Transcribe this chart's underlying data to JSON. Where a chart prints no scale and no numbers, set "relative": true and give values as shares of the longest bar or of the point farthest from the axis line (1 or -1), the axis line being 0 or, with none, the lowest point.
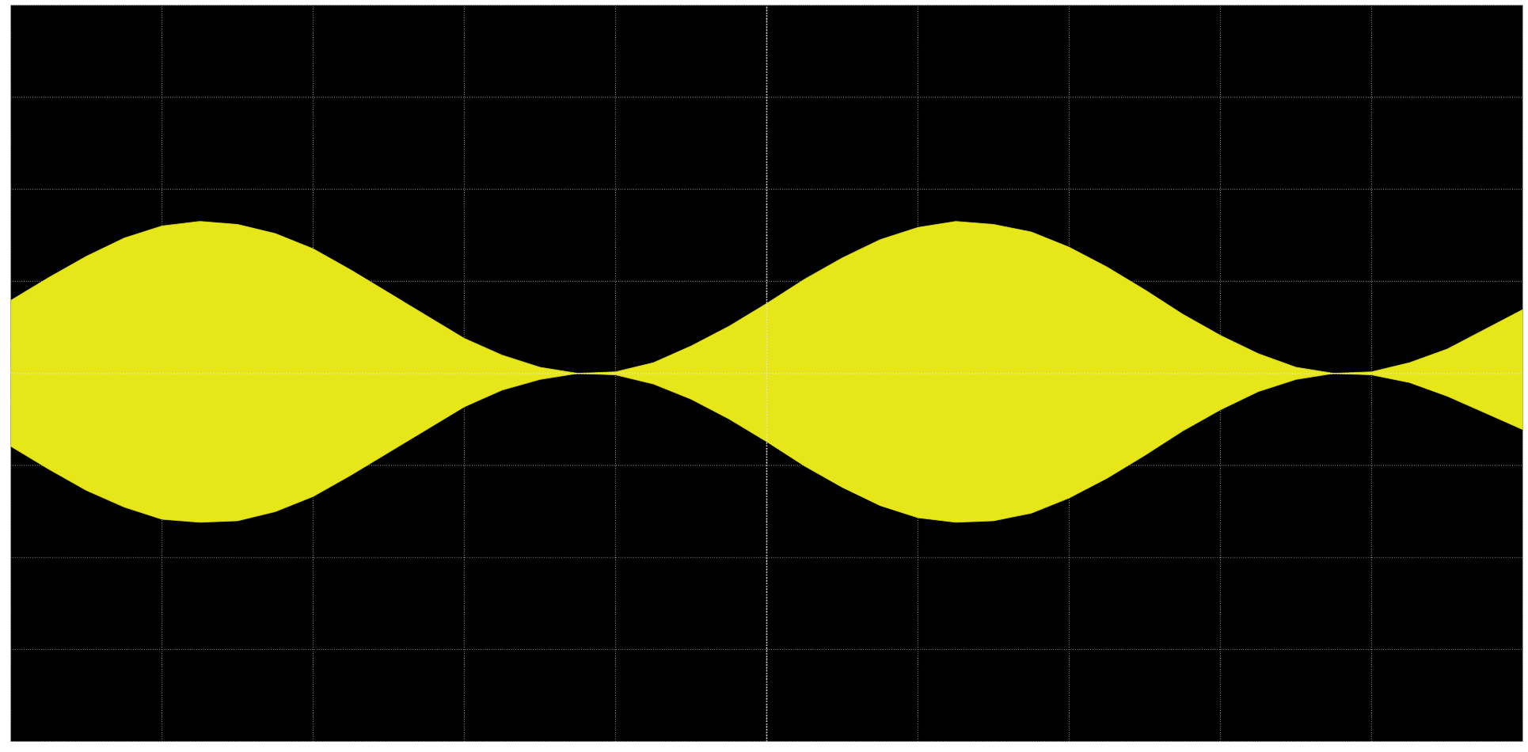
{
  "chart_data": {
    "type": "area",
    "relative": true,
    "grid": true,
    "ref_lines": [
      {
        "axis": "y",
        "value": 0,
        "color": "#e5e5e5",
        "line_style": "dotted"
      }
    ],
    "categories": [
      null,
      null,
      null,
      null,
      null,
      null,
      null,
      null,
      null,
      null,
      null,
      null,
      null,
      null,
      null,
      null,
      null,
      null,
      null,
      null,
      null,
      null,
      null,
      null,
      null,
      null,
      null,
      null,
      null,
      null,
      null,
      null,
      null,
      null,
      null,
      null,
      null,
      null,
      null,
      null,
      null
    ],
    "series": [
      {
        "color": "#e6e619",
        "values": [
          0.48,
          0.63,
          0.77,
          0.89,
          0.97,
          1.0,
          0.98,
          0.92,
          0.82,
          0.68,
          0.53,
          0.38,
          0.23,
          0.12,
          0.04,
          0.0,
          0.01,
          0.07,
          0.18,
          0.31,
          0.46,
          0.62,
          0.76,
          0.88,
          0.96,
          1.0,
          0.98,
          0.93,
          0.83,
          0.7,
          0.55,
          0.39,
          0.25,
          0.13,
          0.04,
          0.0,
          0.01,
          0.07,
          0.16,
          0.29,
          0.42
        ]
      },
      {
        "color": "#e6e619",
        "values": [
          -0.48,
          -0.63,
          -0.77,
          -0.88,
          -0.96,
          -0.98,
          -0.97,
          -0.91,
          -0.81,
          -0.67,
          -0.52,
          -0.37,
          -0.22,
          -0.11,
          -0.04,
          0.0,
          -0.01,
          -0.07,
          -0.17,
          -0.3,
          -0.45,
          -0.61,
          -0.75,
          -0.87,
          -0.95,
          -0.98,
          -0.97,
          -0.92,
          -0.82,
          -0.69,
          -0.54,
          -0.38,
          -0.24,
          -0.12,
          -0.04,
          0.0,
          -0.01,
          -0.06,
          -0.15,
          -0.26,
          -0.37
        ]
      }
    ]
  }
}
